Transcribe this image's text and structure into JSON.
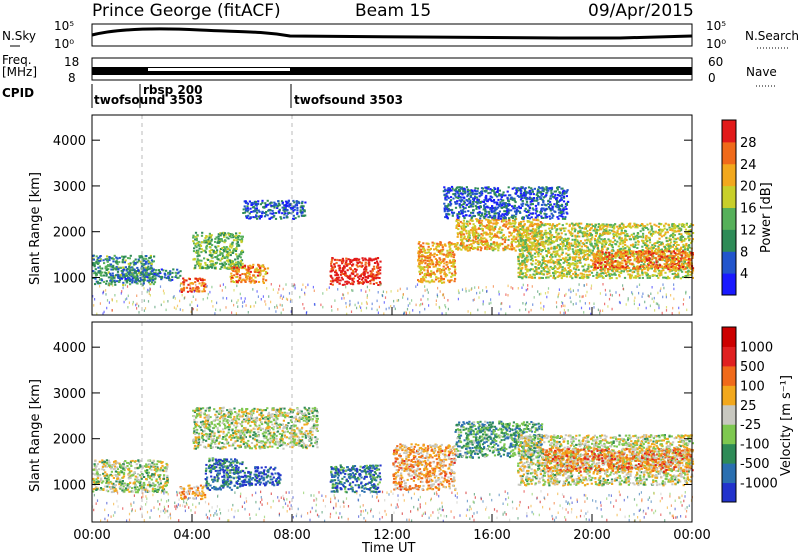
{
  "header": {
    "station": "Prince George (fitACF)",
    "beam": "Beam 15",
    "date": "09/Apr/2015"
  },
  "top_panels": {
    "nsky_label": "N.Sky",
    "nsearch_label": "N.Search",
    "noise_ticks": [
      "10^5",
      "10^0"
    ],
    "noise_ticks_right": [
      "10^5",
      "10^0"
    ],
    "freq_label_1": "Freq.",
    "freq_label_2": "[MHz]",
    "freq_ticks": [
      "18",
      "8"
    ],
    "nave_label": "Nave",
    "nave_ticks": [
      "60",
      "0"
    ],
    "cpid_label": "CPID",
    "cpid_segments": [
      {
        "name": "twofsound 3503",
        "start_hour": 0
      },
      {
        "name": "rbsp 200",
        "start_hour": 2
      },
      {
        "name": "twofsound 3503",
        "start_hour": 8
      }
    ]
  },
  "chart_data": [
    {
      "type": "heatmap",
      "title": "",
      "xlabel": "Time UT",
      "ylabel": "Slant Range [km]",
      "xlim": [
        0,
        24
      ],
      "ylim": [
        180,
        4550
      ],
      "xticks": [
        "00:00",
        "04:00",
        "08:00",
        "12:00",
        "16:00",
        "20:00",
        "00:00"
      ],
      "yticks": [
        "1000",
        "2000",
        "3000",
        "4000"
      ],
      "colorbar": {
        "label": "Power [dB]",
        "ticks": [
          "4",
          "8",
          "12",
          "16",
          "20",
          "24",
          "28"
        ],
        "colors": [
          "#1a1aff",
          "#2255cc",
          "#2e8b57",
          "#56b05a",
          "#c8cf2a",
          "#f2a81d",
          "#f06a1a",
          "#e21a1a"
        ]
      },
      "regions": [
        {
          "t": [
            0.0,
            2.5
          ],
          "r": [
            850,
            1500
          ],
          "level": 0.35
        },
        {
          "t": [
            1.0,
            3.5
          ],
          "r": [
            950,
            1200
          ],
          "level": 0.25
        },
        {
          "t": [
            3.5,
            4.5
          ],
          "r": [
            700,
            1000
          ],
          "level": 0.85
        },
        {
          "t": [
            4.0,
            6.0
          ],
          "r": [
            1200,
            2000
          ],
          "level": 0.45
        },
        {
          "t": [
            5.5,
            7.0
          ],
          "r": [
            900,
            1300
          ],
          "level": 0.75
        },
        {
          "t": [
            6.0,
            8.5
          ],
          "r": [
            2300,
            2700
          ],
          "level": 0.2
        },
        {
          "t": [
            9.5,
            11.5
          ],
          "r": [
            850,
            1450
          ],
          "level": 0.95
        },
        {
          "t": [
            13.0,
            14.5
          ],
          "r": [
            900,
            1800
          ],
          "level": 0.7
        },
        {
          "t": [
            14.5,
            18.0
          ],
          "r": [
            1600,
            2300
          ],
          "level": 0.65
        },
        {
          "t": [
            17.0,
            24.0
          ],
          "r": [
            1000,
            2200
          ],
          "level": 0.55
        },
        {
          "t": [
            20.0,
            24.0
          ],
          "r": [
            1200,
            1600
          ],
          "level": 0.8
        },
        {
          "t": [
            14.0,
            19.0
          ],
          "r": [
            2300,
            3000
          ],
          "level": 0.2
        }
      ]
    },
    {
      "type": "heatmap",
      "title": "",
      "xlabel": "Time UT",
      "ylabel": "Slant Range [km]",
      "xlim": [
        0,
        24
      ],
      "ylim": [
        180,
        4550
      ],
      "xticks": [
        "00:00",
        "04:00",
        "08:00",
        "12:00",
        "16:00",
        "20:00",
        "00:00"
      ],
      "yticks": [
        "1000",
        "2000",
        "3000",
        "4000"
      ],
      "colorbar": {
        "label": "Velocity [m s⁻¹]",
        "ticks": [
          "1000",
          "500",
          "100",
          "25",
          "-25",
          "-100",
          "-500",
          "-1000"
        ],
        "colors": [
          "#2233cc",
          "#2a6fb0",
          "#2e8b57",
          "#7ec850",
          "#c8c8c0",
          "#f2a81d",
          "#f06a1a",
          "#e02020",
          "#cc0000"
        ]
      },
      "regions": [
        {
          "t": [
            0.0,
            3.0
          ],
          "r": [
            850,
            1550
          ],
          "level": 0.45
        },
        {
          "t": [
            3.5,
            4.5
          ],
          "r": [
            700,
            1000
          ],
          "level": 0.62
        },
        {
          "t": [
            4.5,
            6.0
          ],
          "r": [
            900,
            1600
          ],
          "level": 0.2
        },
        {
          "t": [
            6.0,
            7.5
          ],
          "r": [
            1000,
            1400
          ],
          "level": 0.12
        },
        {
          "t": [
            4.0,
            9.0
          ],
          "r": [
            1800,
            2700
          ],
          "level": 0.45
        },
        {
          "t": [
            9.5,
            11.5
          ],
          "r": [
            850,
            1450
          ],
          "level": 0.2
        },
        {
          "t": [
            12.0,
            14.5
          ],
          "r": [
            900,
            1900
          ],
          "level": 0.62
        },
        {
          "t": [
            14.5,
            18.0
          ],
          "r": [
            1600,
            2400
          ],
          "level": 0.3
        },
        {
          "t": [
            17.0,
            24.0
          ],
          "r": [
            1000,
            2100
          ],
          "level": 0.48
        },
        {
          "t": [
            18.0,
            24.0
          ],
          "r": [
            1300,
            1800
          ],
          "level": 0.66
        }
      ]
    }
  ]
}
